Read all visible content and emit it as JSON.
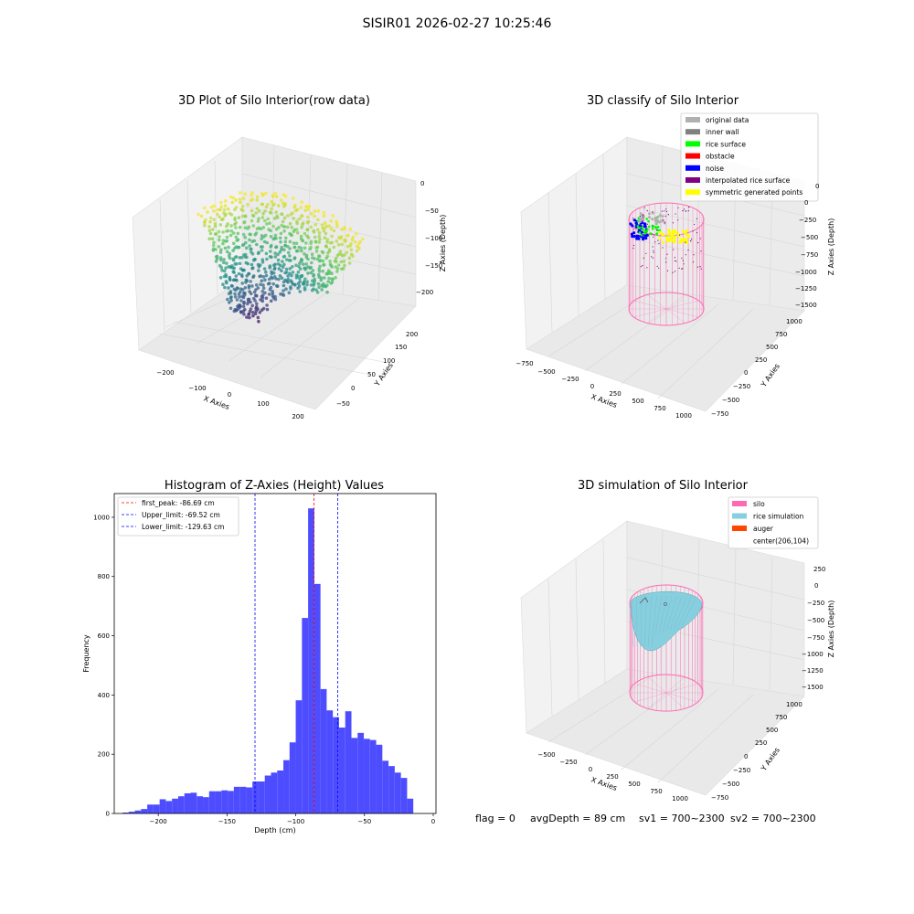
{
  "figure": {
    "suptitle": "SISIR01 2026-02-27 10:25:46",
    "footer": {
      "flag": "flag = 0",
      "avg_depth": "avgDepth = 89 cm",
      "sv1": "sv1 = 700~2300",
      "sv2": "sv2 = 700~2300"
    }
  },
  "colors": {
    "hist_bar": "#4d4dff",
    "first_peak": "#ff0000",
    "limits": "#0000ff",
    "silo": "#ff69b4",
    "rice_simulation": "#87cede",
    "auger": "#ff4500",
    "original_data": "#b0b0b0",
    "inner_wall": "#808080",
    "rice_surface": "#00ff00",
    "obstacle": "#ff0000",
    "noise": "#0000ff",
    "interpolated_rice_surface": "#800080",
    "symmetric_generated_points": "#ffff00"
  },
  "chart_data": [
    {
      "type": "scatter",
      "title": "3D Plot of Silo Interior(row data)",
      "xlabel": "X Axies",
      "ylabel": "Y Axies",
      "zlabel": "Z Axies (Depth)",
      "x_ticks": [
        "−200",
        "−100",
        "0",
        "100",
        "200"
      ],
      "y_ticks": [
        "−50",
        "0",
        "50",
        "100",
        "150",
        "200"
      ],
      "z_ticks": [
        "0",
        "−50",
        "−100",
        "−150",
        "−200"
      ],
      "colormap": "viridis"
    },
    {
      "type": "scatter",
      "title": "3D classify of Silo Interior",
      "xlabel": "X Axies",
      "ylabel": "Y Axies",
      "zlabel": "Z Axies (Depth)",
      "x_ticks": [
        "−750",
        "−500",
        "−250",
        "0",
        "250",
        "500",
        "750",
        "1000"
      ],
      "y_ticks": [
        "−750",
        "−500",
        "−250",
        "0",
        "250",
        "500",
        "750",
        "1000"
      ],
      "z_ticks": [
        "0",
        "−250",
        "−500",
        "−750",
        "−1000",
        "−1250",
        "−1500"
      ],
      "z_top_tick": "0",
      "legend": [
        "original data",
        "inner wall",
        "rice surface",
        "obstacle",
        "noise",
        "interpolated rice surface",
        "symmetric generated points"
      ],
      "legend_position": "upper right"
    },
    {
      "type": "bar",
      "title": "Histogram of Z-Axies (Height) Values",
      "xlabel": "Depth (cm)",
      "ylabel": "Frequency",
      "xlim": [
        -232,
        2
      ],
      "ylim": [
        0,
        1080
      ],
      "x_ticks": [
        -200,
        -150,
        -100,
        -50,
        0
      ],
      "x_tick_labels": [
        "−200",
        "−150",
        "−100",
        "−50",
        "0"
      ],
      "y_ticks": [
        0,
        200,
        400,
        600,
        800,
        1000
      ],
      "bin_start": -226,
      "bin_width": 4.5,
      "values": [
        3,
        6,
        10,
        15,
        30,
        30,
        48,
        42,
        50,
        58,
        68,
        70,
        58,
        55,
        75,
        75,
        78,
        76,
        90,
        90,
        88,
        108,
        108,
        128,
        138,
        145,
        180,
        240,
        382,
        660,
        1030,
        775,
        420,
        348,
        325,
        290,
        345,
        255,
        272,
        252,
        248,
        232,
        178,
        160,
        138,
        120,
        50
      ],
      "lines": [
        {
          "label": "first_peak: -86.69 cm",
          "x": -86.69,
          "color_key": "first_peak"
        },
        {
          "label": "Upper_limit: -69.52 cm",
          "x": -69.52,
          "color_key": "limits"
        },
        {
          "label": "Lower_limit: -129.63 cm",
          "x": -129.63,
          "color_key": "limits"
        }
      ],
      "legend_position": "upper left"
    },
    {
      "type": "scatter",
      "title": "3D simulation of Silo Interior",
      "xlabel": "X Axies",
      "ylabel": "Y Axies",
      "zlabel": "Z Axies (Depth)",
      "x_ticks": [
        "−500",
        "−250",
        "0",
        "250",
        "500",
        "750",
        "1000"
      ],
      "y_ticks": [
        "−750",
        "−500",
        "−250",
        "0",
        "250",
        "500",
        "750",
        "1000"
      ],
      "z_ticks": [
        "250",
        "0",
        "−250",
        "−500",
        "−750",
        "−1000",
        "−1250",
        "−1500"
      ],
      "legend": [
        "silo",
        "rice simulation",
        "auger",
        "center(206,104)"
      ],
      "legend_position": "upper right"
    }
  ]
}
